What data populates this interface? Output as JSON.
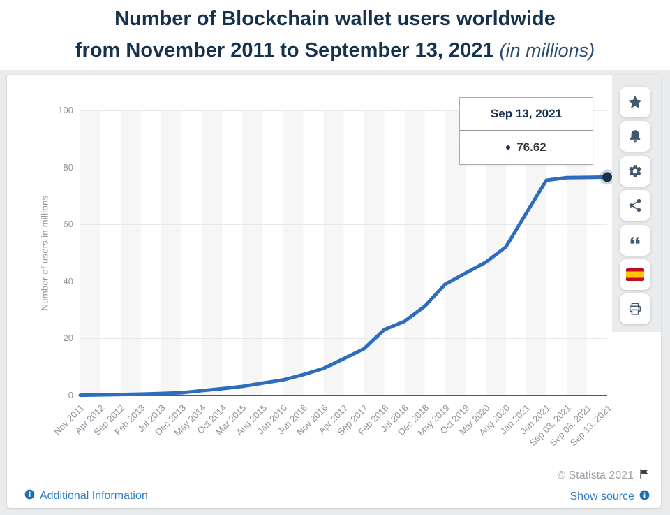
{
  "header": {
    "title_line1": "Number of Blockchain wallet users worldwide",
    "title_line2": "from November 2011 to September 13, 2021",
    "title_suffix": "(in millions)"
  },
  "chart_data": {
    "type": "line",
    "title": "Number of Blockchain wallet users worldwide from November 2011 to September 13, 2021 (in millions)",
    "xlabel": "",
    "ylabel": "Number of users in millions",
    "ylim": [
      0,
      100
    ],
    "yticks": [
      0,
      20,
      40,
      60,
      80,
      100
    ],
    "grid": true,
    "legend_position": "none",
    "categories": [
      "Nov 2011",
      "Apr 2012",
      "Sep 2012",
      "Feb 2013",
      "Jul 2013",
      "Dec 2013",
      "May 2014",
      "Oct 2014",
      "Mar 2015",
      "Aug 2015",
      "Jan 2016",
      "Jun 2016",
      "Nov 2016",
      "Apr 2017",
      "Sep 2017",
      "Feb 2018",
      "Jul 2018",
      "Dec 2018",
      "May 2019",
      "Oct 2019",
      "Mar 2020",
      "Aug 2020",
      "Jan 2021",
      "Jun 2021",
      "Sep 03, 2021",
      "Sep 08, 2021",
      "Sep 13, 2021"
    ],
    "series": [
      {
        "name": "Blockchain wallet users",
        "values": [
          0.1,
          0.2,
          0.35,
          0.5,
          0.7,
          0.95,
          1.7,
          2.4,
          3.2,
          4.35,
          5.45,
          7.3,
          9.5,
          12.9,
          16.4,
          23.1,
          26.0,
          31.3,
          39.0,
          42.9,
          46.7,
          52.1,
          63.9,
          75.5,
          76.4,
          76.5,
          76.62
        ]
      }
    ],
    "last_point_label": "76.62"
  },
  "tooltip": {
    "date": "Sep 13, 2021",
    "value": "76.62"
  },
  "sidebar": {
    "buttons": [
      {
        "label": "favorite",
        "icon": "star-icon"
      },
      {
        "label": "notifications",
        "icon": "bell-icon"
      },
      {
        "label": "settings",
        "icon": "gear-icon"
      },
      {
        "label": "share",
        "icon": "share-icon"
      },
      {
        "label": "cite",
        "icon": "quote-icon"
      },
      {
        "label": "language-spanish",
        "icon": "spain-flag-icon"
      },
      {
        "label": "print",
        "icon": "printer-icon"
      }
    ]
  },
  "footer": {
    "additional_information": "Additional Information",
    "copyright": "© Statista 2021",
    "show_source": "Show source"
  },
  "colors": {
    "line": "#2e6dbd",
    "marker": "#16314d",
    "marker_halo": "rgba(90,100,115,0.28)",
    "title": "#16314d",
    "link": "#2e7cc3",
    "info_badge": "#1a6fb5",
    "axis_text": "#8f959c",
    "grid": "#e7e8ea",
    "baseline": "#54585c",
    "icon": "#42586f",
    "flag_red": "#c60b1e",
    "flag_yellow": "#ffc400"
  }
}
